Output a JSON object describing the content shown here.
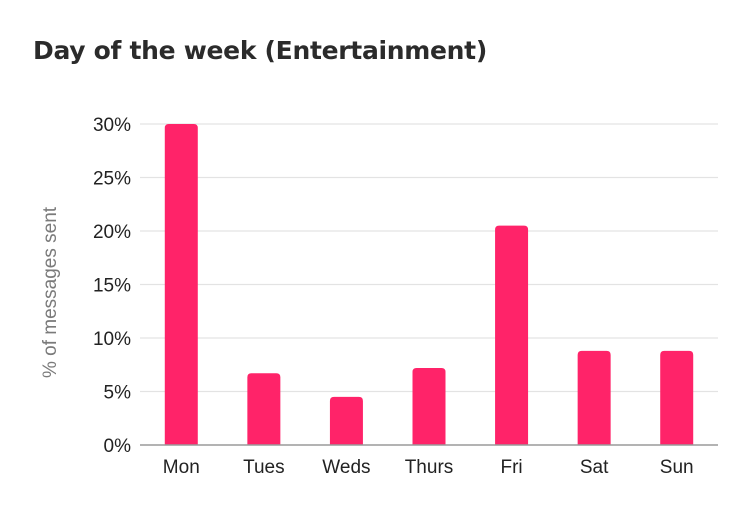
{
  "chart_data": {
    "type": "bar",
    "title": "Day of the week (Entertainment)",
    "xlabel": "",
    "ylabel": "% of messages sent",
    "categories": [
      "Mon",
      "Tues",
      "Weds",
      "Thurs",
      "Fri",
      "Sat",
      "Sun"
    ],
    "values": [
      30,
      6.7,
      4.5,
      7.2,
      20.5,
      8.8,
      8.8
    ],
    "ylim": [
      0,
      30
    ],
    "yticks": [
      0,
      5,
      10,
      15,
      20,
      25,
      30
    ],
    "ytick_labels": [
      "0%",
      "5%",
      "10%",
      "15%",
      "20%",
      "25%",
      "30%"
    ],
    "grid": true,
    "legend": "none",
    "colors": {
      "bar": "#ff2369",
      "grid": "#e3e3e3",
      "axis": "#9a9a9a",
      "title": "#2b2b2b",
      "ylabel": "#7a7a7a"
    }
  }
}
